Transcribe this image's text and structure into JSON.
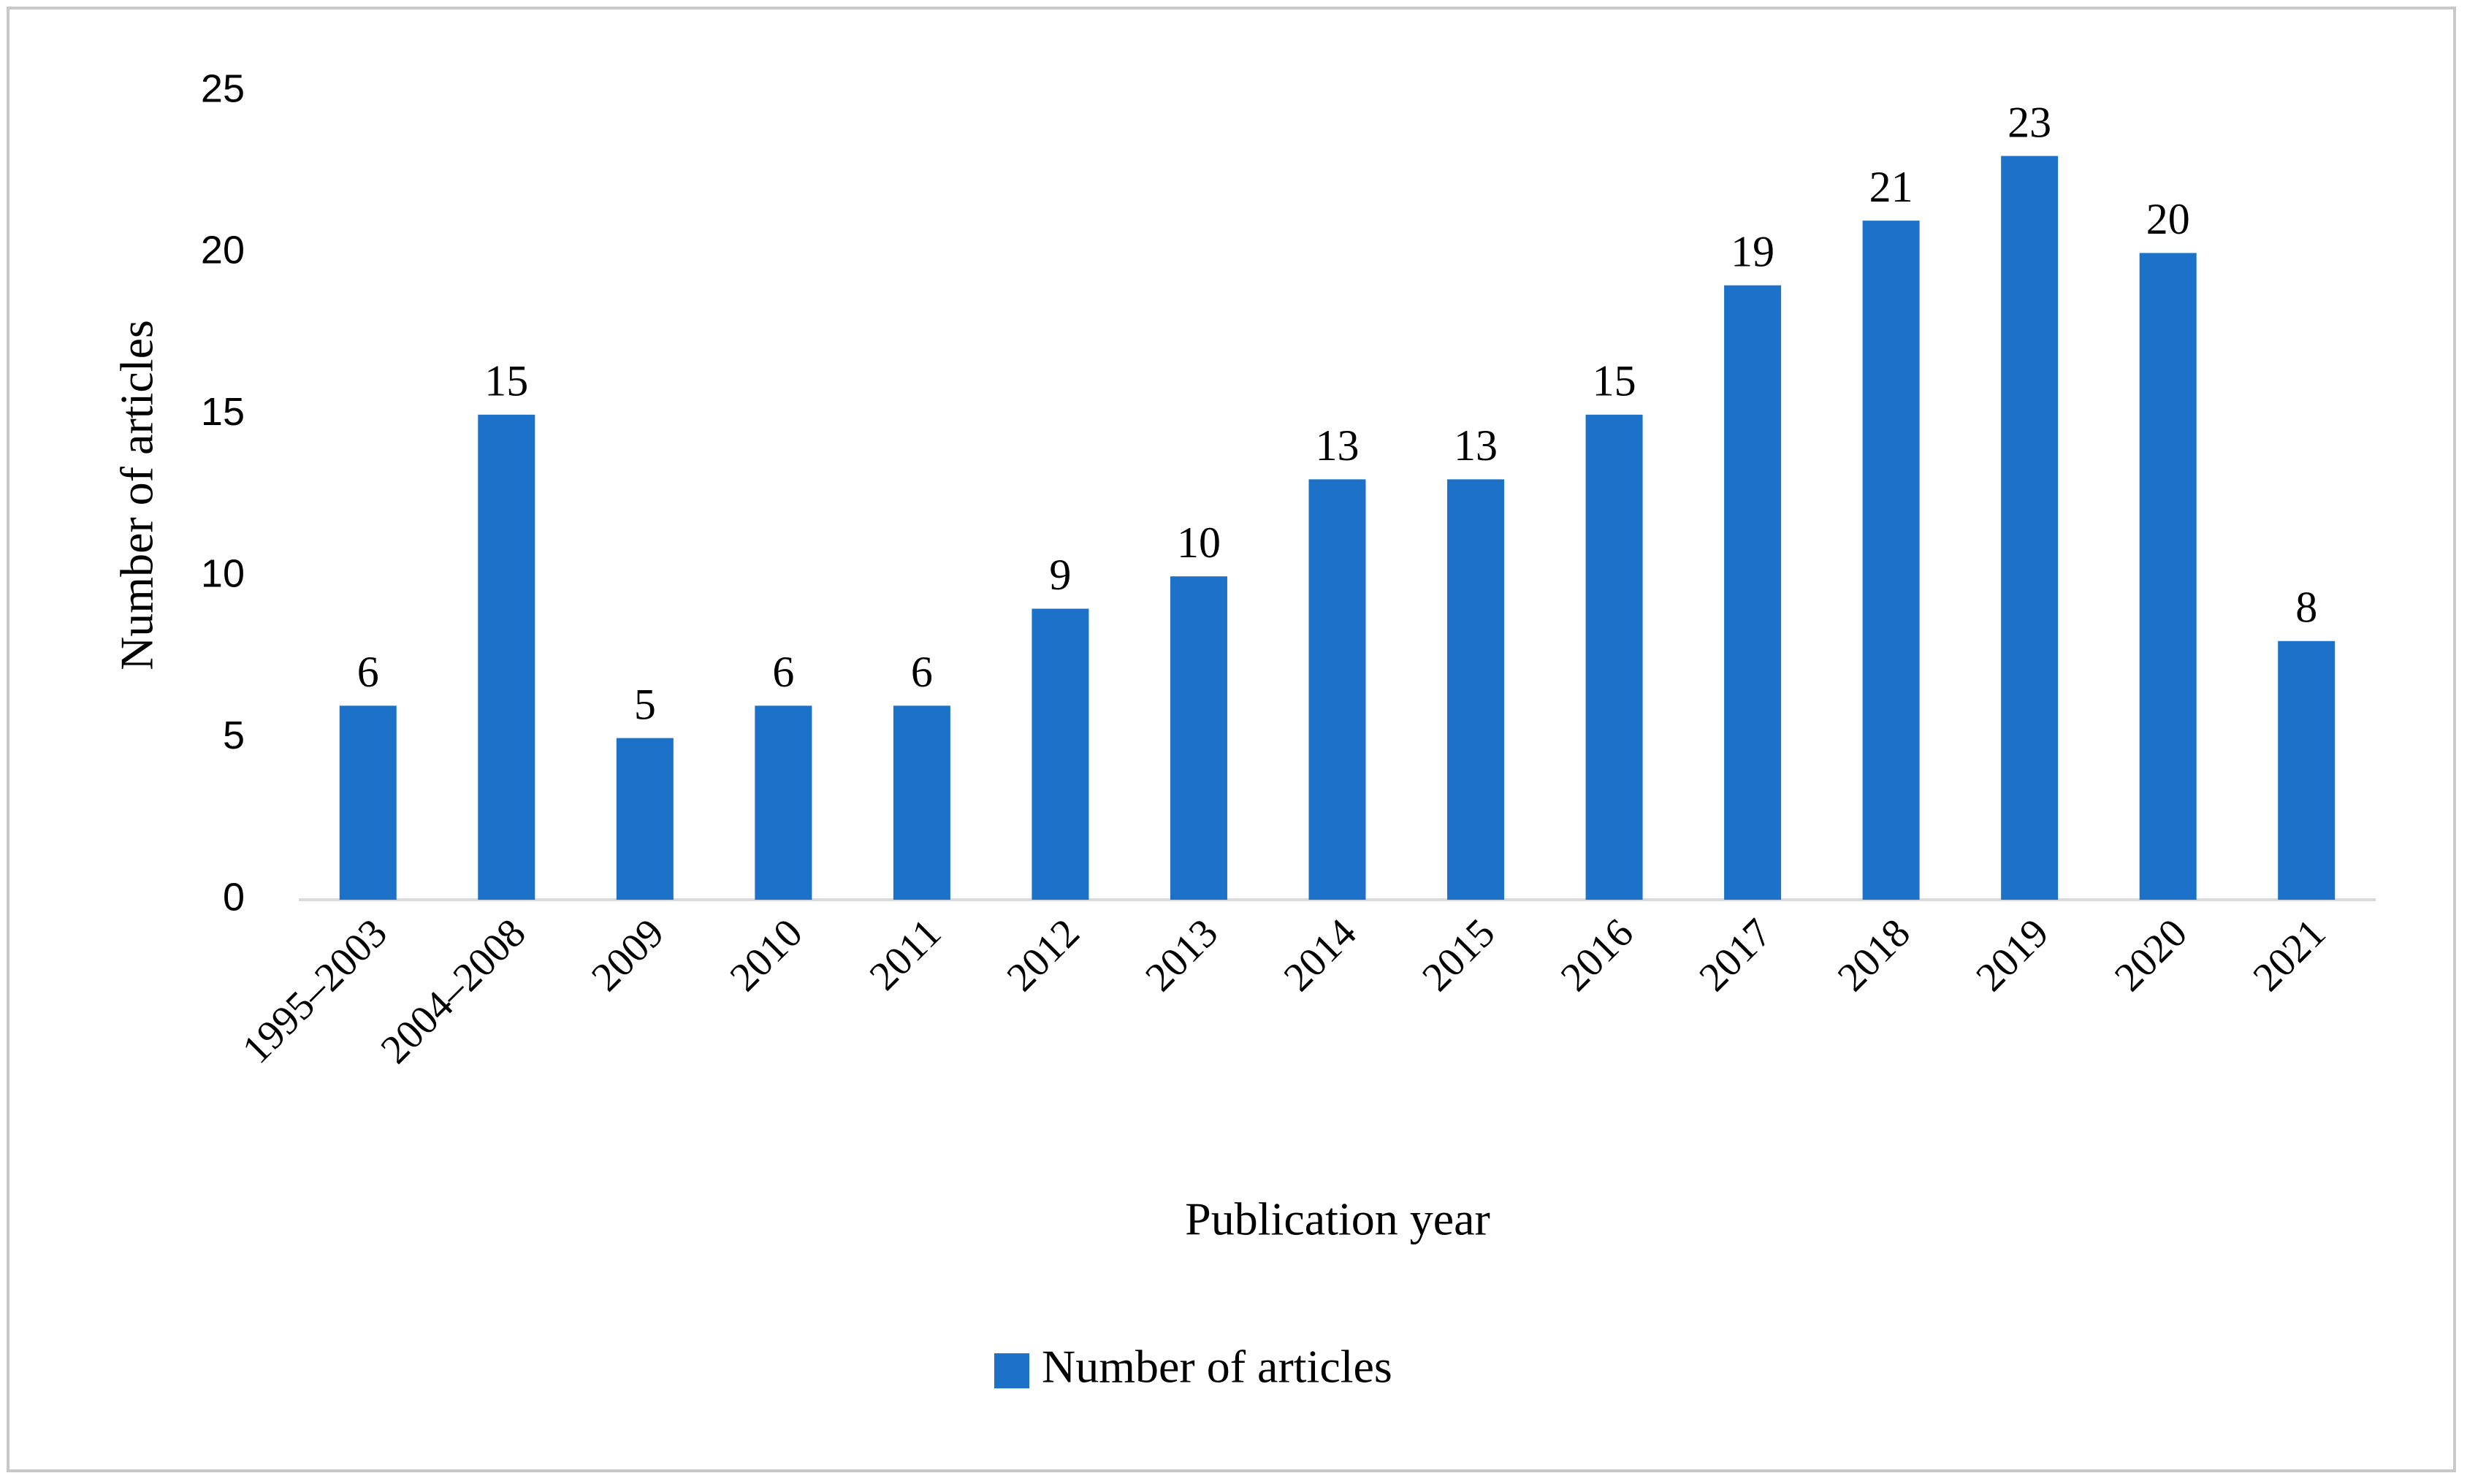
{
  "chart_data": {
    "type": "bar",
    "x_label": "Publication year",
    "y_label": "Number of articles",
    "categories": [
      "1995–2003",
      "2004–2008",
      "2009",
      "2010",
      "2011",
      "2012",
      "2013",
      "2014",
      "2015",
      "2016",
      "2017",
      "2018",
      "2019",
      "2020",
      "2021"
    ],
    "series": [
      {
        "name": "Number of articles",
        "color": "#1b72c8",
        "values": [
          6,
          15,
          5,
          6,
          6,
          9,
          10,
          13,
          13,
          15,
          19,
          21,
          23,
          20,
          8
        ]
      }
    ],
    "ylim": [
      0,
      25
    ],
    "yticks": [
      0,
      5,
      10,
      15,
      20,
      25
    ],
    "grid": false,
    "legend": "bottom"
  }
}
